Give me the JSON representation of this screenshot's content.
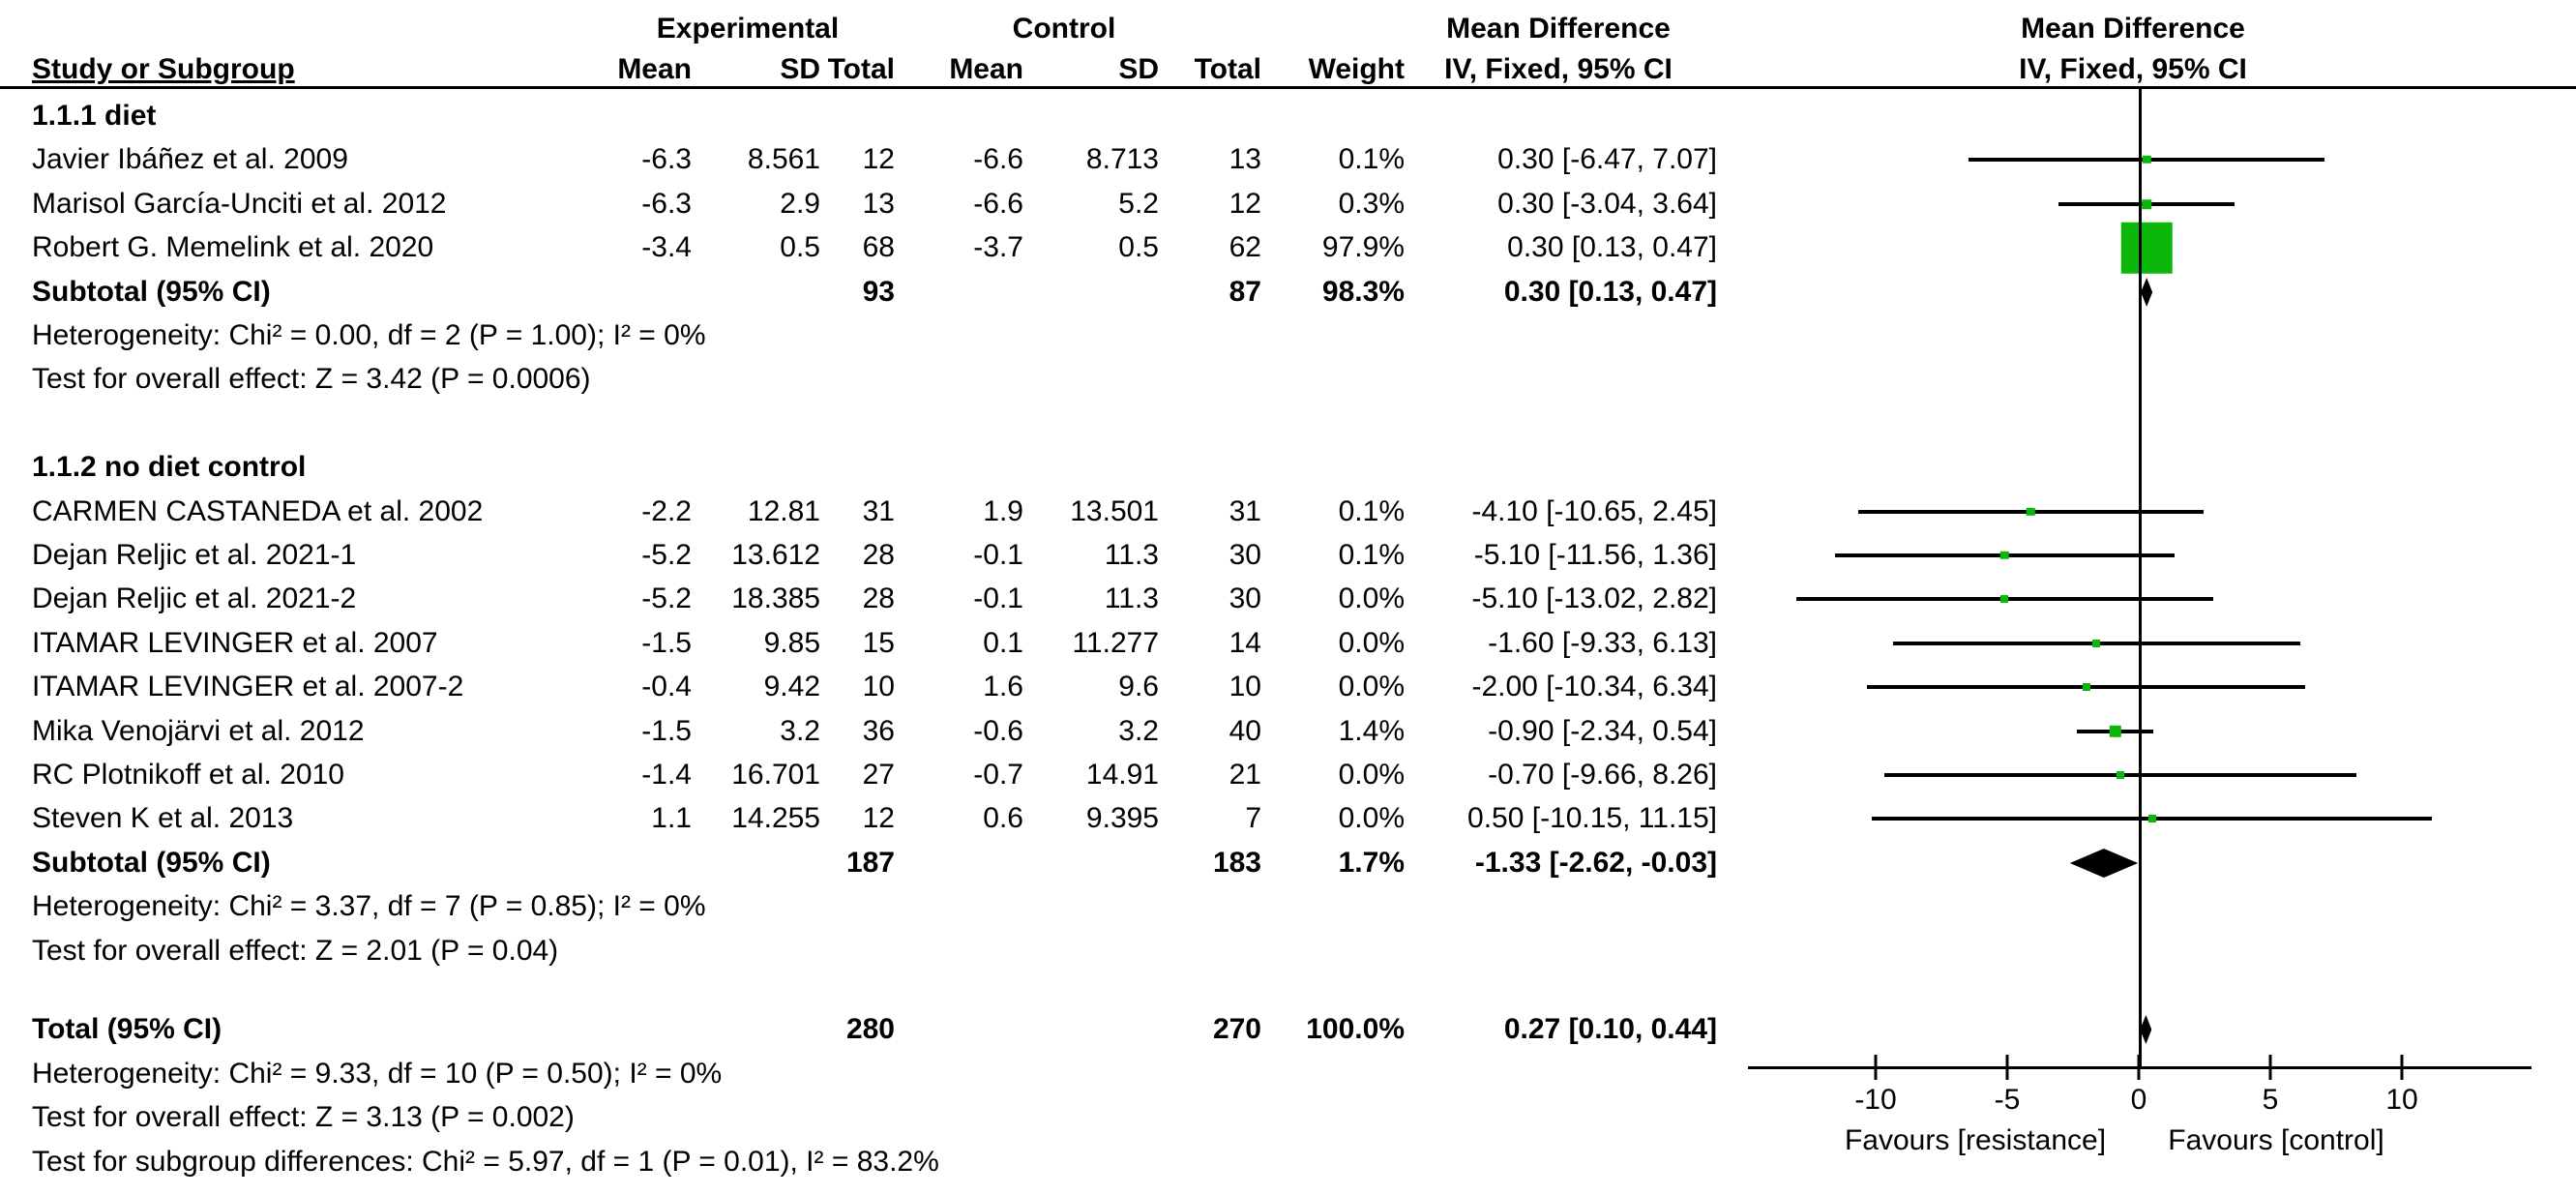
{
  "header": {
    "study_col": "Study or Subgroup",
    "group_experimental": "Experimental",
    "group_control": "Control",
    "md_text_col": "Mean Difference",
    "md_plot_col": "Mean Difference",
    "iv_text_col": "IV, Fixed, 95% CI",
    "iv_plot_col": "IV, Fixed, 95% CI",
    "mean_label": "Mean",
    "sd_label": "SD",
    "total_label": "Total",
    "weight_label": "Weight"
  },
  "colors": {
    "marker_green": "#0CB70C",
    "diamond_black": "#000000",
    "line_black": "#000000"
  },
  "chart_data": {
    "type": "forest",
    "effect_measure": "Mean Difference, IV, Fixed, 95% CI",
    "axis": {
      "ticks": [
        -10,
        -5,
        0,
        5,
        10
      ],
      "range": [
        -13.4,
        15
      ],
      "zero_line": 0,
      "favours_left": "Favours [resistance]",
      "favours_right": "Favours [control]"
    },
    "rows": [
      {
        "kind": "group",
        "label": "1.1.1 diet"
      },
      {
        "kind": "study",
        "name": "Javier Ibáñez et al. 2009",
        "mean1": "-6.3",
        "sd1": "8.561",
        "n1": "12",
        "mean2": "-6.6",
        "sd2": "8.713",
        "n2": "13",
        "weight": "0.1%",
        "weight_pct": 0.1,
        "ci_text": "0.30 [-6.47, 7.07]",
        "est": 0.3,
        "lo": -6.47,
        "hi": 7.07
      },
      {
        "kind": "study",
        "name": "Marisol García-Unciti et al. 2012",
        "mean1": "-6.3",
        "sd1": "2.9",
        "n1": "13",
        "mean2": "-6.6",
        "sd2": "5.2",
        "n2": "12",
        "weight": "0.3%",
        "weight_pct": 0.3,
        "ci_text": "0.30 [-3.04, 3.64]",
        "est": 0.3,
        "lo": -3.04,
        "hi": 3.64
      },
      {
        "kind": "study",
        "name": "Robert G. Memelink et al. 2020",
        "mean1": "-3.4",
        "sd1": "0.5",
        "n1": "68",
        "mean2": "-3.7",
        "sd2": "0.5",
        "n2": "62",
        "weight": "97.9%",
        "weight_pct": 97.9,
        "ci_text": "0.30 [0.13, 0.47]",
        "est": 0.3,
        "lo": 0.13,
        "hi": 0.47
      },
      {
        "kind": "subtotal",
        "label": "Subtotal (95% CI)",
        "n1": "93",
        "n2": "87",
        "weight": "98.3%",
        "ci_text": "0.30 [0.13, 0.47]",
        "est": 0.3,
        "lo": 0.13,
        "hi": 0.47
      },
      {
        "kind": "note",
        "text": "Heterogeneity: Chi² = 0.00, df = 2 (P = 1.00); I² = 0%"
      },
      {
        "kind": "note",
        "text": "Test for overall effect: Z = 3.42 (P = 0.0006)"
      },
      {
        "kind": "group",
        "label": "1.1.2 no diet control",
        "gap": 1
      },
      {
        "kind": "study",
        "name": "CARMEN CASTANEDA et al. 2002",
        "mean1": "-2.2",
        "sd1": "12.81",
        "n1": "31",
        "mean2": "1.9",
        "sd2": "13.501",
        "n2": "31",
        "weight": "0.1%",
        "weight_pct": 0.1,
        "ci_text": "-4.10 [-10.65, 2.45]",
        "est": -4.1,
        "lo": -10.65,
        "hi": 2.45
      },
      {
        "kind": "study",
        "name": "Dejan Reljic et al. 2021-1",
        "mean1": "-5.2",
        "sd1": "13.612",
        "n1": "28",
        "mean2": "-0.1",
        "sd2": "11.3",
        "n2": "30",
        "weight": "0.1%",
        "weight_pct": 0.1,
        "ci_text": "-5.10 [-11.56, 1.36]",
        "est": -5.1,
        "lo": -11.56,
        "hi": 1.36
      },
      {
        "kind": "study",
        "name": "Dejan Reljic et al. 2021-2",
        "mean1": "-5.2",
        "sd1": "18.385",
        "n1": "28",
        "mean2": "-0.1",
        "sd2": "11.3",
        "n2": "30",
        "weight": "0.0%",
        "weight_pct": 0.0,
        "ci_text": "-5.10 [-13.02, 2.82]",
        "est": -5.1,
        "lo": -13.02,
        "hi": 2.82
      },
      {
        "kind": "study",
        "name": "ITAMAR LEVINGER et al. 2007",
        "mean1": "-1.5",
        "sd1": "9.85",
        "n1": "15",
        "mean2": "0.1",
        "sd2": "11.277",
        "n2": "14",
        "weight": "0.0%",
        "weight_pct": 0.0,
        "ci_text": "-1.60 [-9.33, 6.13]",
        "est": -1.6,
        "lo": -9.33,
        "hi": 6.13
      },
      {
        "kind": "study",
        "name": "ITAMAR LEVINGER et al. 2007-2",
        "mean1": "-0.4",
        "sd1": "9.42",
        "n1": "10",
        "mean2": "1.6",
        "sd2": "9.6",
        "n2": "10",
        "weight": "0.0%",
        "weight_pct": 0.0,
        "ci_text": "-2.00 [-10.34, 6.34]",
        "est": -2.0,
        "lo": -10.34,
        "hi": 6.34
      },
      {
        "kind": "study",
        "name": "Mika Venojärvi et al. 2012",
        "mean1": "-1.5",
        "sd1": "3.2",
        "n1": "36",
        "mean2": "-0.6",
        "sd2": "3.2",
        "n2": "40",
        "weight": "1.4%",
        "weight_pct": 1.4,
        "ci_text": "-0.90 [-2.34, 0.54]",
        "est": -0.9,
        "lo": -2.34,
        "hi": 0.54
      },
      {
        "kind": "study",
        "name": "RC Plotnikoff et al. 2010",
        "mean1": "-1.4",
        "sd1": "16.701",
        "n1": "27",
        "mean2": "-0.7",
        "sd2": "14.91",
        "n2": "21",
        "weight": "0.0%",
        "weight_pct": 0.0,
        "ci_text": "-0.70 [-9.66, 8.26]",
        "est": -0.7,
        "lo": -9.66,
        "hi": 8.26
      },
      {
        "kind": "study",
        "name": "Steven K et al. 2013",
        "mean1": "1.1",
        "sd1": "14.255",
        "n1": "12",
        "mean2": "0.6",
        "sd2": "9.395",
        "n2": "7",
        "weight": "0.0%",
        "weight_pct": 0.0,
        "ci_text": "0.50 [-10.15, 11.15]",
        "est": 0.5,
        "lo": -10.15,
        "hi": 11.15
      },
      {
        "kind": "subtotal",
        "label": "Subtotal (95% CI)",
        "n1": "187",
        "n2": "183",
        "weight": "1.7%",
        "ci_text": "-1.33 [-2.62, -0.03]",
        "est": -1.33,
        "lo": -2.62,
        "hi": -0.03
      },
      {
        "kind": "note",
        "text": "Heterogeneity: Chi² = 3.37, df = 7 (P = 0.85); I² = 0%"
      },
      {
        "kind": "note",
        "text": "Test for overall effect: Z = 2.01 (P = 0.04)"
      },
      {
        "kind": "subtotal",
        "label": "Total (95% CI)",
        "n1": "280",
        "n2": "270",
        "weight": "100.0%",
        "ci_text": "0.27 [0.10, 0.44]",
        "est": 0.27,
        "lo": 0.1,
        "hi": 0.44,
        "gap": 0.8
      },
      {
        "kind": "note",
        "text": "Heterogeneity: Chi² = 9.33, df = 10 (P = 0.50); I² = 0%"
      },
      {
        "kind": "note",
        "text": "Test for overall effect: Z = 3.13 (P = 0.002)"
      },
      {
        "kind": "note",
        "text": "Test for subgroup differences: Chi² = 5.97, df = 1 (P = 0.01), I² = 83.2%"
      }
    ]
  }
}
